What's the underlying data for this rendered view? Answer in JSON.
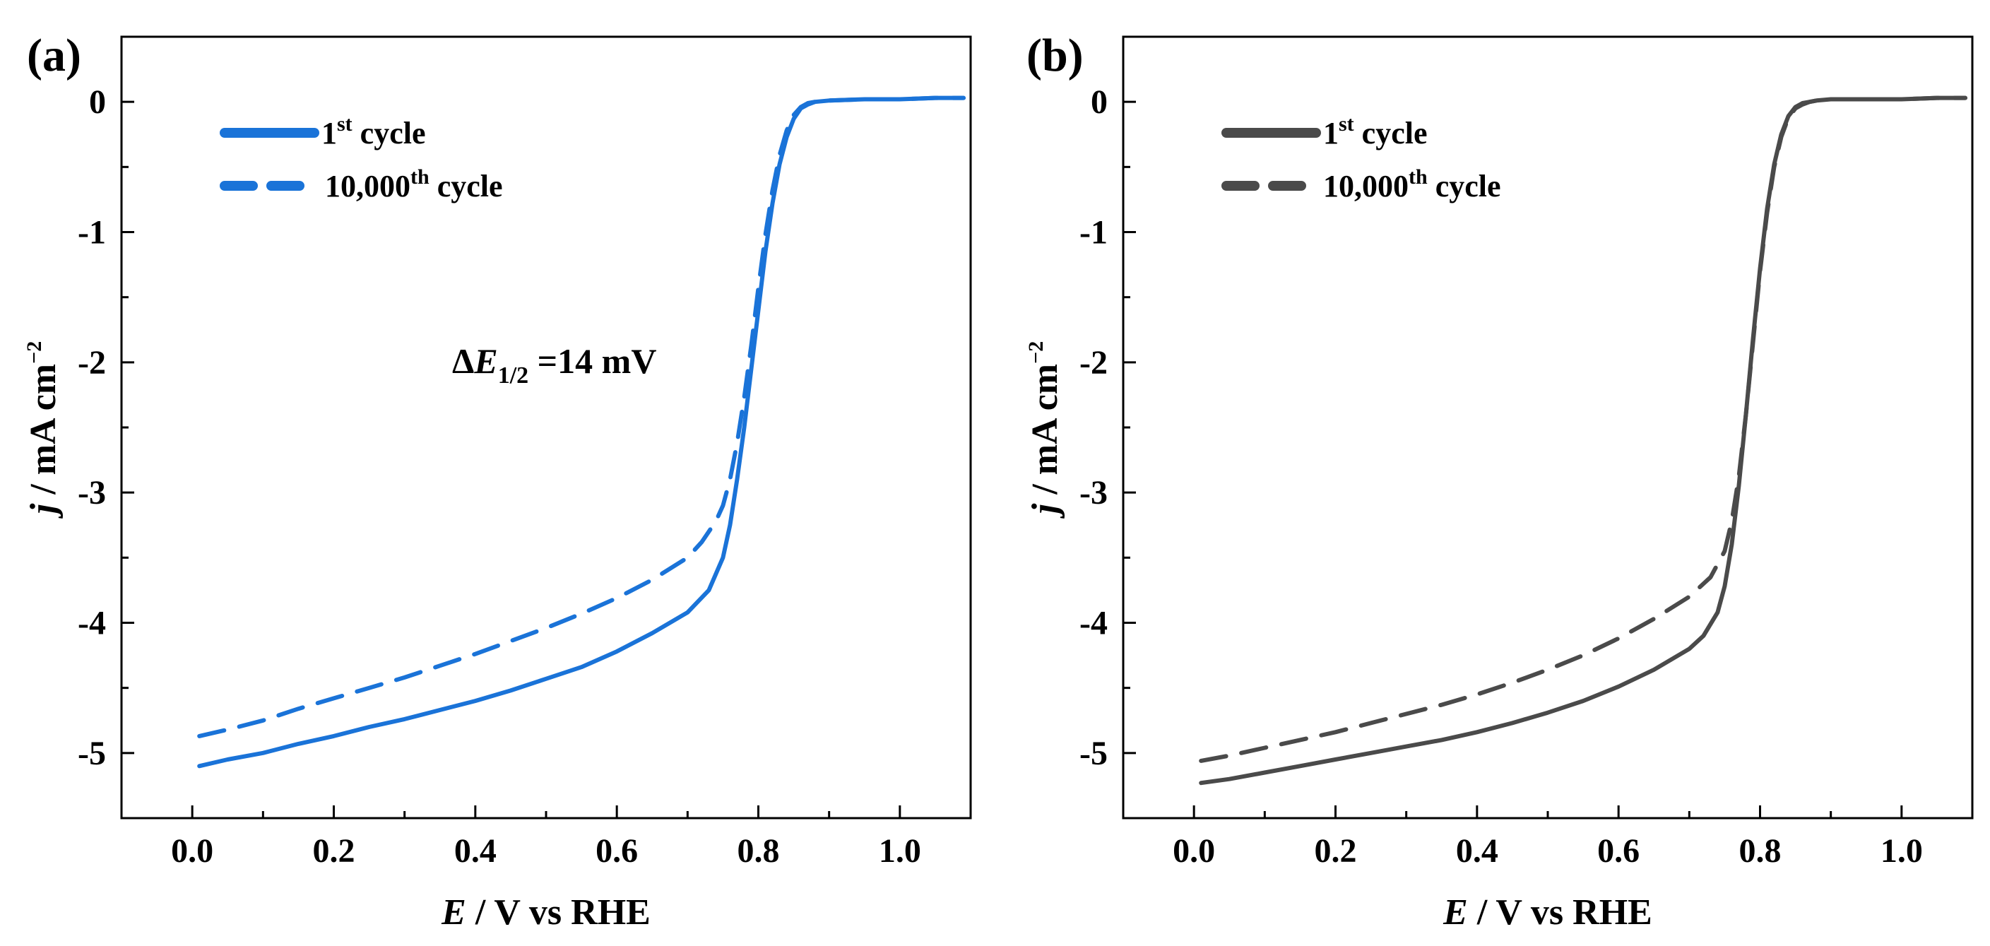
{
  "chart_data": [
    {
      "panel": "(a)",
      "type": "line",
      "xlabel_italic": "E",
      "xlabel_rest": " / V vs RHE",
      "ylabel_italic": "j",
      "ylabel_rest": " / mA cm",
      "ylabel_sup": "−2",
      "xlim": [
        -0.1,
        1.1
      ],
      "ylim": [
        -5.5,
        0.5
      ],
      "xticks": [
        "0.0",
        "0.2",
        "0.4",
        "0.6",
        "0.8",
        "1.0"
      ],
      "xtick_values": [
        0.0,
        0.2,
        0.4,
        0.6,
        0.8,
        1.0
      ],
      "yticks": [
        "0",
        "-1",
        "-2",
        "-3",
        "-4",
        "-5"
      ],
      "ytick_values": [
        0,
        -1,
        -2,
        -3,
        -4,
        -5
      ],
      "color": "#1a73d8",
      "annotation": {
        "prefix": "Δ",
        "italic": "E",
        "sub": "1/2",
        "text": " =14 mV",
        "x": 0.45,
        "y": -2.0
      },
      "series": [
        {
          "name_main": "1",
          "name_sup": "st",
          "name_tail": " cycle",
          "style": "solid",
          "x": [
            0.01,
            0.05,
            0.1,
            0.15,
            0.2,
            0.25,
            0.3,
            0.35,
            0.4,
            0.45,
            0.5,
            0.55,
            0.6,
            0.65,
            0.7,
            0.73,
            0.75,
            0.76,
            0.77,
            0.78,
            0.79,
            0.8,
            0.81,
            0.82,
            0.83,
            0.84,
            0.85,
            0.86,
            0.87,
            0.88,
            0.9,
            0.95,
            1.0,
            1.05,
            1.09
          ],
          "y": [
            -5.1,
            -5.05,
            -5.0,
            -4.93,
            -4.87,
            -4.8,
            -4.74,
            -4.67,
            -4.6,
            -4.52,
            -4.43,
            -4.34,
            -4.22,
            -4.08,
            -3.92,
            -3.75,
            -3.5,
            -3.25,
            -2.9,
            -2.5,
            -2.05,
            -1.6,
            -1.15,
            -0.78,
            -0.48,
            -0.27,
            -0.13,
            -0.05,
            -0.02,
            0.0,
            0.01,
            0.02,
            0.02,
            0.03,
            0.03
          ]
        },
        {
          "name_main": "10,000",
          "name_sup": "th",
          "name_tail": " cycle",
          "style": "dashed",
          "x": [
            0.01,
            0.05,
            0.1,
            0.15,
            0.2,
            0.25,
            0.3,
            0.35,
            0.4,
            0.45,
            0.5,
            0.55,
            0.6,
            0.65,
            0.7,
            0.72,
            0.74,
            0.75,
            0.76,
            0.77,
            0.78,
            0.79,
            0.8,
            0.81,
            0.82,
            0.83,
            0.84,
            0.85,
            0.86,
            0.87,
            0.88,
            0.9,
            0.95,
            1.0,
            1.05,
            1.09
          ],
          "y": [
            -4.87,
            -4.82,
            -4.75,
            -4.66,
            -4.58,
            -4.5,
            -4.42,
            -4.33,
            -4.24,
            -4.14,
            -4.04,
            -3.93,
            -3.81,
            -3.67,
            -3.5,
            -3.38,
            -3.22,
            -3.1,
            -2.9,
            -2.62,
            -2.27,
            -1.87,
            -1.43,
            -1.02,
            -0.68,
            -0.41,
            -0.22,
            -0.1,
            -0.04,
            -0.01,
            0.0,
            0.01,
            0.02,
            0.02,
            0.03,
            0.03
          ]
        }
      ]
    },
    {
      "panel": "(b)",
      "type": "line",
      "xlabel_italic": "E",
      "xlabel_rest": " / V vs RHE",
      "ylabel_italic": "j",
      "ylabel_rest": " / mA cm",
      "ylabel_sup": "−2",
      "xlim": [
        -0.1,
        1.1
      ],
      "ylim": [
        -5.5,
        0.5
      ],
      "xticks": [
        "0.0",
        "0.2",
        "0.4",
        "0.6",
        "0.8",
        "1.0"
      ],
      "xtick_values": [
        0.0,
        0.2,
        0.4,
        0.6,
        0.8,
        1.0
      ],
      "yticks": [
        "0",
        "-1",
        "-2",
        "-3",
        "-4",
        "-5"
      ],
      "ytick_values": [
        0,
        -1,
        -2,
        -3,
        -4,
        -5
      ],
      "color": "#4a4a4a",
      "series": [
        {
          "name_main": "1",
          "name_sup": "st",
          "name_tail": " cycle",
          "style": "solid",
          "x": [
            0.01,
            0.05,
            0.1,
            0.15,
            0.2,
            0.25,
            0.3,
            0.35,
            0.4,
            0.45,
            0.5,
            0.55,
            0.6,
            0.65,
            0.7,
            0.72,
            0.74,
            0.75,
            0.76,
            0.77,
            0.78,
            0.79,
            0.8,
            0.81,
            0.82,
            0.83,
            0.84,
            0.85,
            0.86,
            0.87,
            0.88,
            0.9,
            0.95,
            1.0,
            1.05,
            1.09
          ],
          "y": [
            -5.23,
            -5.2,
            -5.15,
            -5.1,
            -5.05,
            -5.0,
            -4.95,
            -4.9,
            -4.84,
            -4.77,
            -4.69,
            -4.6,
            -4.49,
            -4.36,
            -4.2,
            -4.1,
            -3.92,
            -3.72,
            -3.4,
            -2.95,
            -2.4,
            -1.82,
            -1.28,
            -0.82,
            -0.48,
            -0.25,
            -0.11,
            -0.04,
            -0.01,
            0.0,
            0.01,
            0.02,
            0.02,
            0.02,
            0.03,
            0.03
          ]
        },
        {
          "name_main": "10,000",
          "name_sup": "th",
          "name_tail": " cycle",
          "style": "dashed",
          "x": [
            0.01,
            0.05,
            0.1,
            0.15,
            0.2,
            0.25,
            0.3,
            0.35,
            0.4,
            0.45,
            0.5,
            0.55,
            0.6,
            0.65,
            0.7,
            0.73,
            0.75,
            0.76,
            0.77,
            0.78,
            0.79,
            0.8,
            0.81,
            0.82,
            0.83,
            0.84,
            0.85,
            0.86,
            0.87,
            0.88,
            0.9,
            0.95,
            1.0,
            1.05,
            1.09
          ],
          "y": [
            -5.06,
            -5.02,
            -4.96,
            -4.9,
            -4.84,
            -4.77,
            -4.7,
            -4.63,
            -4.55,
            -4.46,
            -4.36,
            -4.25,
            -4.12,
            -3.97,
            -3.8,
            -3.65,
            -3.45,
            -3.22,
            -2.88,
            -2.4,
            -1.85,
            -1.3,
            -0.85,
            -0.5,
            -0.27,
            -0.12,
            -0.05,
            -0.02,
            0.0,
            0.01,
            0.02,
            0.02,
            0.02,
            0.03,
            0.03
          ]
        }
      ]
    }
  ]
}
